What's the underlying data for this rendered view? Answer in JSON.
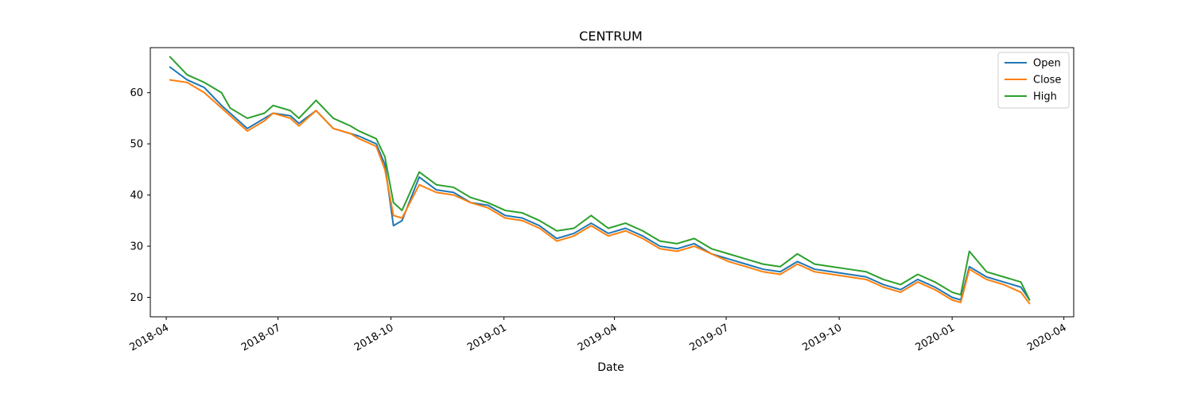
{
  "chart_data": {
    "type": "line",
    "title": "CENTRUM",
    "xlabel": "Date",
    "ylabel": "",
    "xlim": [
      "2018-03-19",
      "2020-04-09"
    ],
    "ylim": [
      16.2,
      68.8
    ],
    "x_ticks": [
      "2018-04",
      "2018-07",
      "2018-10",
      "2019-01",
      "2019-04",
      "2019-07",
      "2019-10",
      "2020-01",
      "2020-04"
    ],
    "y_ticks": [
      20,
      30,
      40,
      50,
      60
    ],
    "grid": false,
    "legend_position": "top-right",
    "x": [
      "2018-04-04",
      "2018-04-18",
      "2018-05-02",
      "2018-05-16",
      "2018-05-23",
      "2018-06-06",
      "2018-06-20",
      "2018-06-27",
      "2018-07-11",
      "2018-07-18",
      "2018-08-01",
      "2018-08-15",
      "2018-08-29",
      "2018-09-05",
      "2018-09-19",
      "2018-09-26",
      "2018-10-03",
      "2018-10-10",
      "2018-10-24",
      "2018-11-07",
      "2018-11-21",
      "2018-12-05",
      "2018-12-19",
      "2019-01-02",
      "2019-01-16",
      "2019-01-30",
      "2019-02-13",
      "2019-02-27",
      "2019-03-13",
      "2019-03-27",
      "2019-04-10",
      "2019-04-24",
      "2019-05-08",
      "2019-05-22",
      "2019-06-05",
      "2019-06-19",
      "2019-07-03",
      "2019-07-17",
      "2019-07-31",
      "2019-08-14",
      "2019-08-28",
      "2019-09-11",
      "2019-09-25",
      "2019-10-09",
      "2019-10-23",
      "2019-11-06",
      "2019-11-20",
      "2019-12-04",
      "2019-12-18",
      "2020-01-01",
      "2020-01-08",
      "2020-01-15",
      "2020-01-29",
      "2020-02-12",
      "2020-02-26",
      "2020-03-04"
    ],
    "series": [
      {
        "name": "Open",
        "color": "#1f77b4",
        "values": [
          65.0,
          62.5,
          61.0,
          57.5,
          56.0,
          53.0,
          55.0,
          56.0,
          55.5,
          54.0,
          56.5,
          53.0,
          52.0,
          51.5,
          50.0,
          46.0,
          34.0,
          35.0,
          43.5,
          41.0,
          40.5,
          38.5,
          38.0,
          36.0,
          35.5,
          34.0,
          31.5,
          32.5,
          34.5,
          32.5,
          33.5,
          32.0,
          30.0,
          29.5,
          30.5,
          28.5,
          27.5,
          26.5,
          25.5,
          25.0,
          27.0,
          25.5,
          25.0,
          24.5,
          24.0,
          22.5,
          21.5,
          23.5,
          22.0,
          20.0,
          19.5,
          26.0,
          24.0,
          23.0,
          22.0,
          19.5
        ]
      },
      {
        "name": "Close",
        "color": "#ff7f0e",
        "values": [
          62.5,
          62.0,
          60.0,
          57.0,
          55.5,
          52.5,
          54.5,
          56.0,
          55.0,
          53.5,
          56.5,
          53.0,
          52.0,
          51.0,
          49.5,
          45.0,
          36.0,
          35.5,
          42.0,
          40.5,
          40.0,
          38.5,
          37.5,
          35.5,
          35.0,
          33.5,
          31.0,
          32.0,
          34.0,
          32.0,
          33.0,
          31.5,
          29.5,
          29.0,
          30.0,
          28.5,
          27.0,
          26.0,
          25.0,
          24.5,
          26.5,
          25.0,
          24.5,
          24.0,
          23.5,
          22.0,
          21.0,
          23.0,
          21.5,
          19.5,
          19.0,
          25.5,
          23.5,
          22.5,
          21.0,
          18.8
        ]
      },
      {
        "name": "High",
        "color": "#2ca02c",
        "values": [
          67.0,
          63.5,
          62.0,
          60.0,
          57.0,
          55.0,
          56.0,
          57.5,
          56.5,
          55.0,
          58.5,
          55.0,
          53.5,
          52.5,
          51.0,
          47.5,
          38.5,
          37.0,
          44.5,
          42.0,
          41.5,
          39.5,
          38.5,
          37.0,
          36.5,
          35.0,
          33.0,
          33.5,
          36.0,
          33.5,
          34.5,
          33.0,
          31.0,
          30.5,
          31.5,
          29.5,
          28.5,
          27.5,
          26.5,
          26.0,
          28.5,
          26.5,
          26.0,
          25.5,
          25.0,
          23.5,
          22.5,
          24.5,
          23.0,
          21.0,
          20.5,
          29.0,
          25.0,
          24.0,
          23.0,
          19.5
        ]
      }
    ]
  }
}
